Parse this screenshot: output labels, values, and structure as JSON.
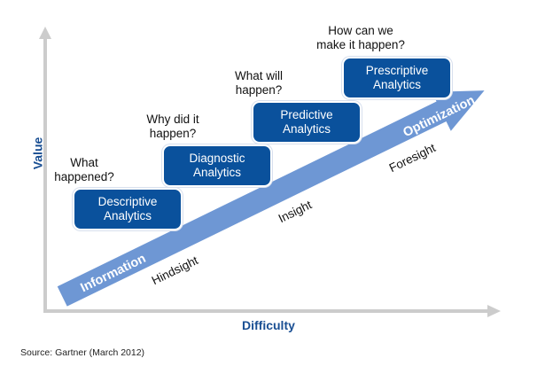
{
  "axes": {
    "y_label": "Value",
    "x_label": "Difficulty"
  },
  "stages": [
    {
      "label": "Descriptive\nAnalytics",
      "question": "What\nhappened?"
    },
    {
      "label": "Diagnostic\nAnalytics",
      "question": "Why did it\nhappen?"
    },
    {
      "label": "Predictive\nAnalytics",
      "question": "What will\nhappen?"
    },
    {
      "label": "Prescriptive\nAnalytics",
      "question": "How can we\nmake it happen?"
    }
  ],
  "arrow": {
    "start_label": "Information",
    "end_label": "Optimization"
  },
  "sights": [
    "Hindsight",
    "Insight",
    "Foresight"
  ],
  "source": "Source: Gartner (March 2012)",
  "colors": {
    "box": "#0a519c",
    "arrow": "#6e97d4",
    "axis": "#cccccc",
    "axis_label": "#1a4f93"
  }
}
